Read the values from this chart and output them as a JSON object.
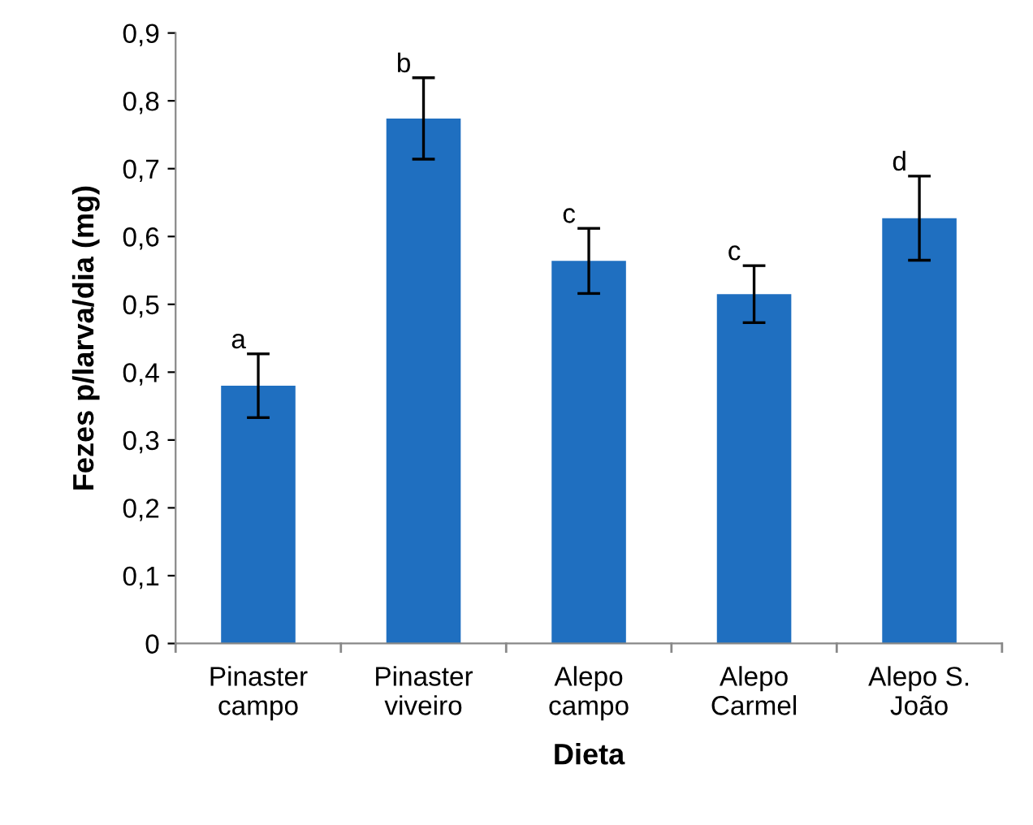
{
  "chart_data": {
    "type": "bar",
    "xlabel": "Dieta",
    "ylabel": "Fezes p/larva/dia (mg)",
    "categories": [
      "Pinaster\ncampo",
      "Pinaster\nviveiro",
      "Alepo\ncampo",
      "Alepo\nCarmel",
      "Alepo S.\nJoão"
    ],
    "values": [
      0.38,
      0.774,
      0.564,
      0.515,
      0.627
    ],
    "errors": [
      0.047,
      0.06,
      0.048,
      0.042,
      0.062
    ],
    "color": "#1f6fc0",
    "ylim": [
      0,
      0.9
    ],
    "yticks": [
      0,
      {
        "value": 0.1,
        "label": "0,1"
      },
      {
        "value": 0.2,
        "label": "0,2"
      },
      {
        "value": 0.3,
        "label": "0,3"
      },
      {
        "value": 0.4,
        "label": "0,4"
      },
      {
        "value": 0.5,
        "label": "0,5"
      },
      {
        "value": 0.6,
        "label": "0,6"
      },
      {
        "value": 0.7,
        "label": "0,7"
      },
      {
        "value": 0.8,
        "label": "0,8"
      },
      {
        "value": 0.9,
        "label": "0,9"
      }
    ],
    "annotations": [
      {
        "text": "a",
        "x": "Pinaster\ncampo",
        "y": 0.427
      },
      {
        "text": "b",
        "x": "Pinaster\nviveiro",
        "y": 0.834
      },
      {
        "text": "c",
        "x": "Alepo\ncampo",
        "y": 0.612
      },
      {
        "text": "c",
        "x": "Alepo\nCarmel",
        "y": 0.557
      },
      {
        "text": "d",
        "x": "Alepo S.\nJoão",
        "y": 0.689
      }
    ],
    "grid": false,
    "legend": false
  }
}
